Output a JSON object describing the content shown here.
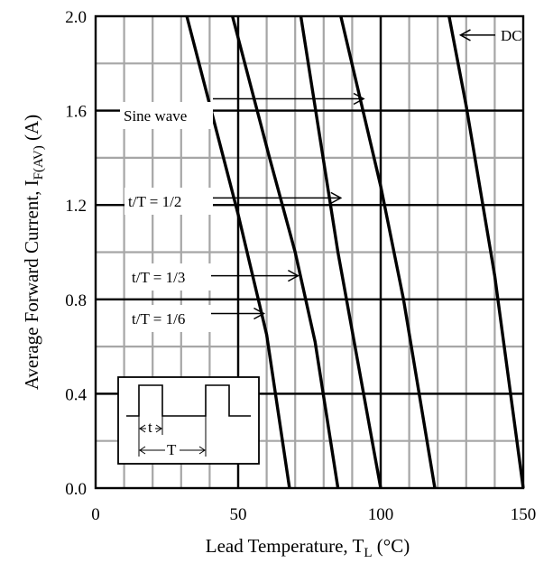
{
  "chart_data": {
    "type": "line",
    "xlabel": {
      "main": "Lead Temperature, T",
      "sub": "L",
      "unit": " (°C)"
    },
    "ylabel": {
      "main": "Average Forward Current, I",
      "sub": "F(AV)",
      "unit": " (A)"
    },
    "xlim": [
      0,
      150
    ],
    "ylim": [
      0,
      2.0
    ],
    "x_ticks": [
      0,
      50,
      100,
      150
    ],
    "x_tick_labels": [
      "0",
      "50",
      "100",
      "150"
    ],
    "y_ticks": [
      0,
      0.4,
      0.8,
      1.2,
      1.6,
      2.0
    ],
    "y_tick_labels": [
      "0.0",
      "0.4",
      "0.8",
      "1.2",
      "1.6",
      "2.0"
    ],
    "grid": true,
    "minor_grid_step": {
      "x": 10,
      "y": 0.2
    },
    "series": [
      {
        "name": "t/T = 1/6",
        "x": [
          32,
          50,
          60,
          68
        ],
        "y": [
          2.0,
          1.16,
          0.65,
          0.0
        ]
      },
      {
        "name": "t/T = 1/3",
        "x": [
          48,
          61,
          70,
          77,
          85
        ],
        "y": [
          2.0,
          1.4,
          1.0,
          0.62,
          0.0
        ]
      },
      {
        "name": "t/T = 1/2",
        "x": [
          72,
          85,
          100
        ],
        "y": [
          2.0,
          1.0,
          0.0
        ]
      },
      {
        "name": "Sine wave",
        "x": [
          86,
          100,
          108,
          119
        ],
        "y": [
          2.0,
          1.28,
          0.8,
          0.0
        ]
      },
      {
        "name": "DC",
        "x": [
          124,
          130,
          140,
          150
        ],
        "y": [
          2.0,
          1.62,
          0.9,
          0.0
        ]
      }
    ],
    "annotations": [
      {
        "label": "Sine wave",
        "target": [
          94,
          1.65
        ]
      },
      {
        "label": "t/T = 1/2",
        "target": [
          86,
          1.23
        ]
      },
      {
        "label": "t/T = 1/3",
        "target": [
          71,
          0.9
        ]
      },
      {
        "label": "t/T = 1/6",
        "target": [
          59,
          0.74
        ]
      },
      {
        "label": "DC",
        "target": [
          128,
          1.92
        ]
      }
    ],
    "inset": {
      "t_label": "t",
      "T_label": "T"
    }
  }
}
